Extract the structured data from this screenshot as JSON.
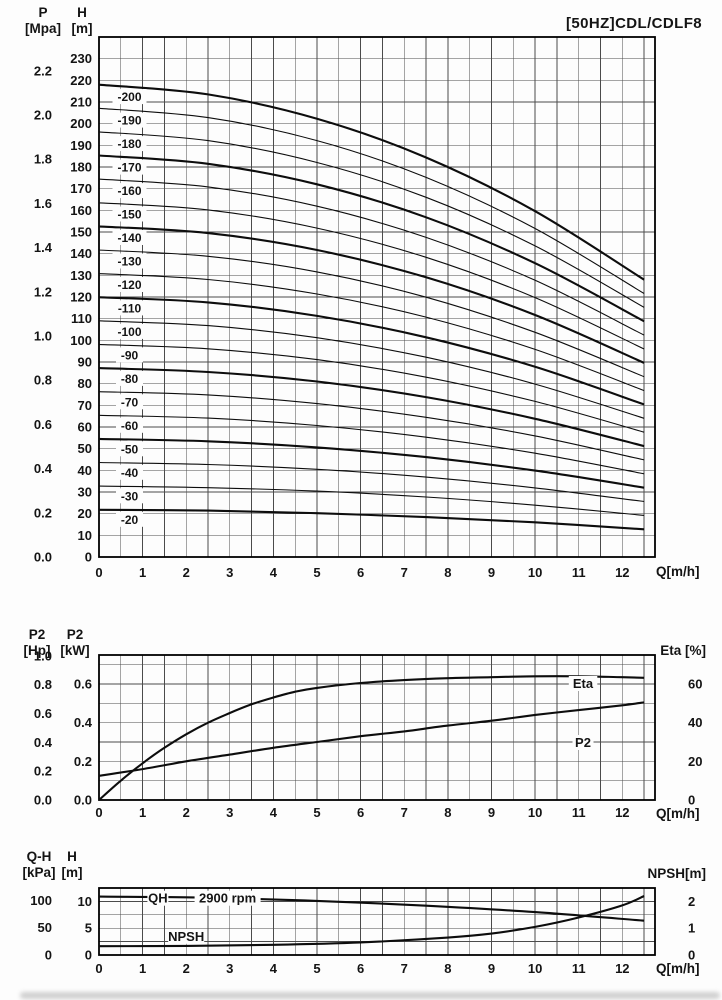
{
  "title": "[50HZ]CDL/CDLF8",
  "chart_data": [
    {
      "id": "main",
      "type": "line",
      "title": "[50HZ]CDL/CDLF8",
      "x": {
        "label": "Q[m/h]",
        "min": 0,
        "max": 12.75,
        "grid_step": 0.5,
        "ticks": [
          "0",
          "1",
          "2",
          "3",
          "4",
          "5",
          "6",
          "7",
          "8",
          "9",
          "10",
          "11",
          "12"
        ]
      },
      "y": {
        "min": 0,
        "max": 240,
        "grid_step": 10
      },
      "series_label_dy": -4.5,
      "axes_left": [
        {
          "label": "P [Mpa]",
          "header": [
            "P",
            "[Mpa]"
          ],
          "to_base": 102,
          "ticks": [
            "0.0",
            "0.2",
            "0.4",
            "0.6",
            "0.8",
            "1.0",
            "1.2",
            "1.4",
            "1.6",
            "1.8",
            "2.0",
            "2.2"
          ]
        },
        {
          "label": "H [m]",
          "header": [
            "H",
            "[m]"
          ],
          "to_base": 1,
          "ticks": [
            "0",
            "10",
            "20",
            "30",
            "40",
            "50",
            "60",
            "70",
            "80",
            "90",
            "100",
            "110",
            "120",
            "130",
            "140",
            "150",
            "160",
            "170",
            "180",
            "190",
            "200",
            "210",
            "220",
            "230"
          ]
        }
      ],
      "series": [
        {
          "name": "-200",
          "bold": true,
          "label_q": 0.7,
          "points": [
            [
              0,
              218.0
            ],
            [
              2.5,
              213.5
            ],
            [
              5,
              202.3
            ],
            [
              7.5,
              184.4
            ],
            [
              10,
              159.6
            ],
            [
              12.5,
              128.0
            ]
          ]
        },
        {
          "name": "-190",
          "bold": false,
          "label_q": 0.7,
          "points": [
            [
              0,
              207.1
            ],
            [
              2.5,
              202.8
            ],
            [
              5,
              192.2
            ],
            [
              7.5,
              175.2
            ],
            [
              10,
              151.6
            ],
            [
              12.5,
              121.6
            ]
          ]
        },
        {
          "name": "-180",
          "bold": false,
          "label_q": 0.7,
          "points": [
            [
              0,
              196.2
            ],
            [
              2.5,
              192.2
            ],
            [
              5,
              182.1
            ],
            [
              7.5,
              166.0
            ],
            [
              10,
              143.6
            ],
            [
              12.5,
              115.2
            ]
          ]
        },
        {
          "name": "-170",
          "bold": true,
          "label_q": 0.7,
          "points": [
            [
              0,
              185.3
            ],
            [
              2.5,
              181.5
            ],
            [
              5,
              172.0
            ],
            [
              7.5,
              156.8
            ],
            [
              10,
              135.6
            ],
            [
              12.5,
              108.8
            ]
          ]
        },
        {
          "name": "-160",
          "bold": false,
          "label_q": 0.7,
          "points": [
            [
              0,
              174.4
            ],
            [
              2.5,
              170.8
            ],
            [
              5,
              161.9
            ],
            [
              7.5,
              147.5
            ],
            [
              10,
              127.7
            ],
            [
              12.5,
              102.4
            ]
          ]
        },
        {
          "name": "-150",
          "bold": false,
          "label_q": 0.7,
          "points": [
            [
              0,
              163.5
            ],
            [
              2.5,
              160.2
            ],
            [
              5,
              151.8
            ],
            [
              7.5,
              138.3
            ],
            [
              10,
              119.7
            ],
            [
              12.5,
              96.0
            ]
          ]
        },
        {
          "name": "-140",
          "bold": true,
          "label_q": 0.7,
          "points": [
            [
              0,
              152.6
            ],
            [
              2.5,
              149.5
            ],
            [
              5,
              141.7
            ],
            [
              7.5,
              129.1
            ],
            [
              10,
              111.7
            ],
            [
              12.5,
              89.6
            ]
          ]
        },
        {
          "name": "-130",
          "bold": false,
          "label_q": 0.7,
          "points": [
            [
              0,
              141.7
            ],
            [
              2.5,
              138.8
            ],
            [
              5,
              131.6
            ],
            [
              7.5,
              119.9
            ],
            [
              10,
              103.7
            ],
            [
              12.5,
              83.2
            ]
          ]
        },
        {
          "name": "-120",
          "bold": false,
          "label_q": 0.7,
          "points": [
            [
              0,
              130.8
            ],
            [
              2.5,
              128.1
            ],
            [
              5,
              121.4
            ],
            [
              7.5,
              110.7
            ],
            [
              10,
              95.8
            ],
            [
              12.5,
              76.8
            ]
          ]
        },
        {
          "name": "-110",
          "bold": true,
          "label_q": 0.7,
          "points": [
            [
              0,
              119.9
            ],
            [
              2.5,
              117.5
            ],
            [
              5,
              111.3
            ],
            [
              7.5,
              101.4
            ],
            [
              10,
              87.8
            ],
            [
              12.5,
              70.4
            ]
          ]
        },
        {
          "name": "-100",
          "bold": false,
          "label_q": 0.7,
          "points": [
            [
              0,
              109.0
            ],
            [
              2.5,
              106.8
            ],
            [
              5,
              101.2
            ],
            [
              7.5,
              92.2
            ],
            [
              10,
              79.8
            ],
            [
              12.5,
              64.0
            ]
          ]
        },
        {
          "name": "-90",
          "bold": false,
          "label_q": 0.7,
          "points": [
            [
              0,
              98.1
            ],
            [
              2.5,
              96.1
            ],
            [
              5,
              91.1
            ],
            [
              7.5,
              83.0
            ],
            [
              10,
              71.8
            ],
            [
              12.5,
              57.6
            ]
          ]
        },
        {
          "name": "-80",
          "bold": true,
          "label_q": 0.7,
          "points": [
            [
              0,
              87.2
            ],
            [
              2.5,
              85.4
            ],
            [
              5,
              81.0
            ],
            [
              7.5,
              73.8
            ],
            [
              10,
              63.8
            ],
            [
              12.5,
              51.2
            ]
          ]
        },
        {
          "name": "-70",
          "bold": false,
          "label_q": 0.7,
          "points": [
            [
              0,
              76.3
            ],
            [
              2.5,
              74.8
            ],
            [
              5,
              70.8
            ],
            [
              7.5,
              64.5
            ],
            [
              10,
              55.9
            ],
            [
              12.5,
              44.8
            ]
          ]
        },
        {
          "name": "-60",
          "bold": false,
          "label_q": 0.7,
          "points": [
            [
              0,
              65.4
            ],
            [
              2.5,
              64.1
            ],
            [
              5,
              60.7
            ],
            [
              7.5,
              55.3
            ],
            [
              10,
              47.9
            ],
            [
              12.5,
              38.4
            ]
          ]
        },
        {
          "name": "-50",
          "bold": true,
          "label_q": 0.7,
          "points": [
            [
              0,
              54.5
            ],
            [
              2.5,
              53.4
            ],
            [
              5,
              50.6
            ],
            [
              7.5,
              46.1
            ],
            [
              10,
              39.9
            ],
            [
              12.5,
              32.0
            ]
          ]
        },
        {
          "name": "-40",
          "bold": false,
          "label_q": 0.7,
          "points": [
            [
              0,
              43.6
            ],
            [
              2.5,
              42.7
            ],
            [
              5,
              40.5
            ],
            [
              7.5,
              36.9
            ],
            [
              10,
              31.9
            ],
            [
              12.5,
              25.6
            ]
          ]
        },
        {
          "name": "-30",
          "bold": false,
          "label_q": 0.7,
          "points": [
            [
              0,
              32.7
            ],
            [
              2.5,
              32.0
            ],
            [
              5,
              30.4
            ],
            [
              7.5,
              27.7
            ],
            [
              10,
              23.9
            ],
            [
              12.5,
              19.2
            ]
          ]
        },
        {
          "name": "-20",
          "bold": true,
          "label_q": 0.7,
          "points": [
            [
              0,
              21.8
            ],
            [
              2.5,
              21.4
            ],
            [
              5,
              20.2
            ],
            [
              7.5,
              18.4
            ],
            [
              10,
              16.0
            ],
            [
              12.5,
              12.8
            ]
          ]
        }
      ]
    },
    {
      "id": "mid",
      "type": "line",
      "x": {
        "label": "Q[m/h]",
        "min": 0,
        "max": 12.75,
        "grid_step": 0.5,
        "ticks": [
          "0",
          "1",
          "2",
          "3",
          "4",
          "5",
          "6",
          "7",
          "8",
          "9",
          "10",
          "11",
          "12"
        ]
      },
      "y": {
        "min": 0,
        "max": 0.75,
        "grid_step": 0.1
      },
      "axes_left": [
        {
          "label": "P2 [Hp]",
          "header": [
            "P2",
            "[Hp]"
          ],
          "to_base": 0.7457,
          "ticks": [
            "0.0",
            "0.2",
            "0.4",
            "0.6",
            "0.8",
            "1.0"
          ]
        },
        {
          "label": "P2 [kW]",
          "header": [
            "P2",
            "[kW]"
          ],
          "to_base": 1,
          "ticks": [
            "0.0",
            "0.2",
            "0.4",
            "0.6"
          ]
        }
      ],
      "axis_right": {
        "label": "Eta [%]",
        "to_base": 0.01,
        "ticks": [
          "0",
          "20",
          "40",
          "60"
        ]
      },
      "series": [
        {
          "name": "Eta",
          "bold": true,
          "to_base": 0.01,
          "points": [
            [
              0,
              0
            ],
            [
              0.5,
              10
            ],
            [
              1,
              19
            ],
            [
              1.5,
              27
            ],
            [
              2,
              34
            ],
            [
              2.5,
              40
            ],
            [
              3,
              45
            ],
            [
              3.5,
              49.5
            ],
            [
              4,
              53
            ],
            [
              4.5,
              56
            ],
            [
              5,
              58
            ],
            [
              6,
              60.5
            ],
            [
              7,
              62
            ],
            [
              8,
              63
            ],
            [
              9,
              63.5
            ],
            [
              10,
              64
            ],
            [
              11,
              64
            ],
            [
              12,
              63.5
            ],
            [
              12.5,
              63.2
            ]
          ]
        },
        {
          "name": "P2",
          "bold": true,
          "to_base": 1,
          "points": [
            [
              0,
              0.125
            ],
            [
              1,
              0.16
            ],
            [
              2,
              0.2
            ],
            [
              3,
              0.235
            ],
            [
              4,
              0.27
            ],
            [
              5,
              0.3
            ],
            [
              6,
              0.33
            ],
            [
              7,
              0.355
            ],
            [
              8,
              0.385
            ],
            [
              9,
              0.41
            ],
            [
              10,
              0.44
            ],
            [
              11,
              0.465
            ],
            [
              12,
              0.49
            ],
            [
              12.5,
              0.505
            ]
          ]
        }
      ],
      "text_labels": [
        {
          "text": "Eta",
          "q": 11.1,
          "v": 0.6
        },
        {
          "text": "P2",
          "q": 11.1,
          "v": 0.295
        }
      ]
    },
    {
      "id": "bot",
      "type": "line",
      "x": {
        "label": "Q[m/h]",
        "min": 0,
        "max": 12.75,
        "grid_step": 0.5,
        "ticks": [
          "0",
          "1",
          "2",
          "3",
          "4",
          "5",
          "6",
          "7",
          "8",
          "9",
          "10",
          "11",
          "12"
        ]
      },
      "y": {
        "min": 0,
        "max": 12.5,
        "grid_step": 2.5
      },
      "axes_left": [
        {
          "label": "Q-H [kPa]",
          "header": [
            "Q-H",
            "[kPa]"
          ],
          "to_base": 0.10197,
          "ticks": [
            "0",
            "50",
            "100"
          ]
        },
        {
          "label": "H [m]",
          "header": [
            "H",
            "[m]"
          ],
          "to_base": 1,
          "ticks": [
            "0",
            "5",
            "10"
          ]
        }
      ],
      "axis_right": {
        "label": "NPSH[m]",
        "to_base": 5,
        "ticks": [
          "0",
          "1",
          "2"
        ]
      },
      "series": [
        {
          "name": "QH",
          "bold": true,
          "to_base": 1,
          "points": [
            [
              0,
              10.9
            ],
            [
              2.5,
              10.7
            ],
            [
              5,
              10.1
            ],
            [
              7.5,
              9.2
            ],
            [
              10,
              8.0
            ],
            [
              12.5,
              6.4
            ]
          ]
        },
        {
          "name": "NPSH",
          "bold": true,
          "to_base": 5,
          "points": [
            [
              0,
              0.33
            ],
            [
              2,
              0.34
            ],
            [
              4,
              0.38
            ],
            [
              6,
              0.47
            ],
            [
              8,
              0.65
            ],
            [
              9,
              0.8
            ],
            [
              10,
              1.05
            ],
            [
              11,
              1.4
            ],
            [
              12,
              1.85
            ],
            [
              12.5,
              2.2
            ]
          ]
        }
      ],
      "text_labels": [
        {
          "text": "QH",
          "q": 1.35,
          "v": 10.5
        },
        {
          "text": "2900 rpm",
          "q": 2.95,
          "v": 10.5
        },
        {
          "text": "NPSH",
          "q": 2.0,
          "v": 3.4
        }
      ]
    }
  ]
}
